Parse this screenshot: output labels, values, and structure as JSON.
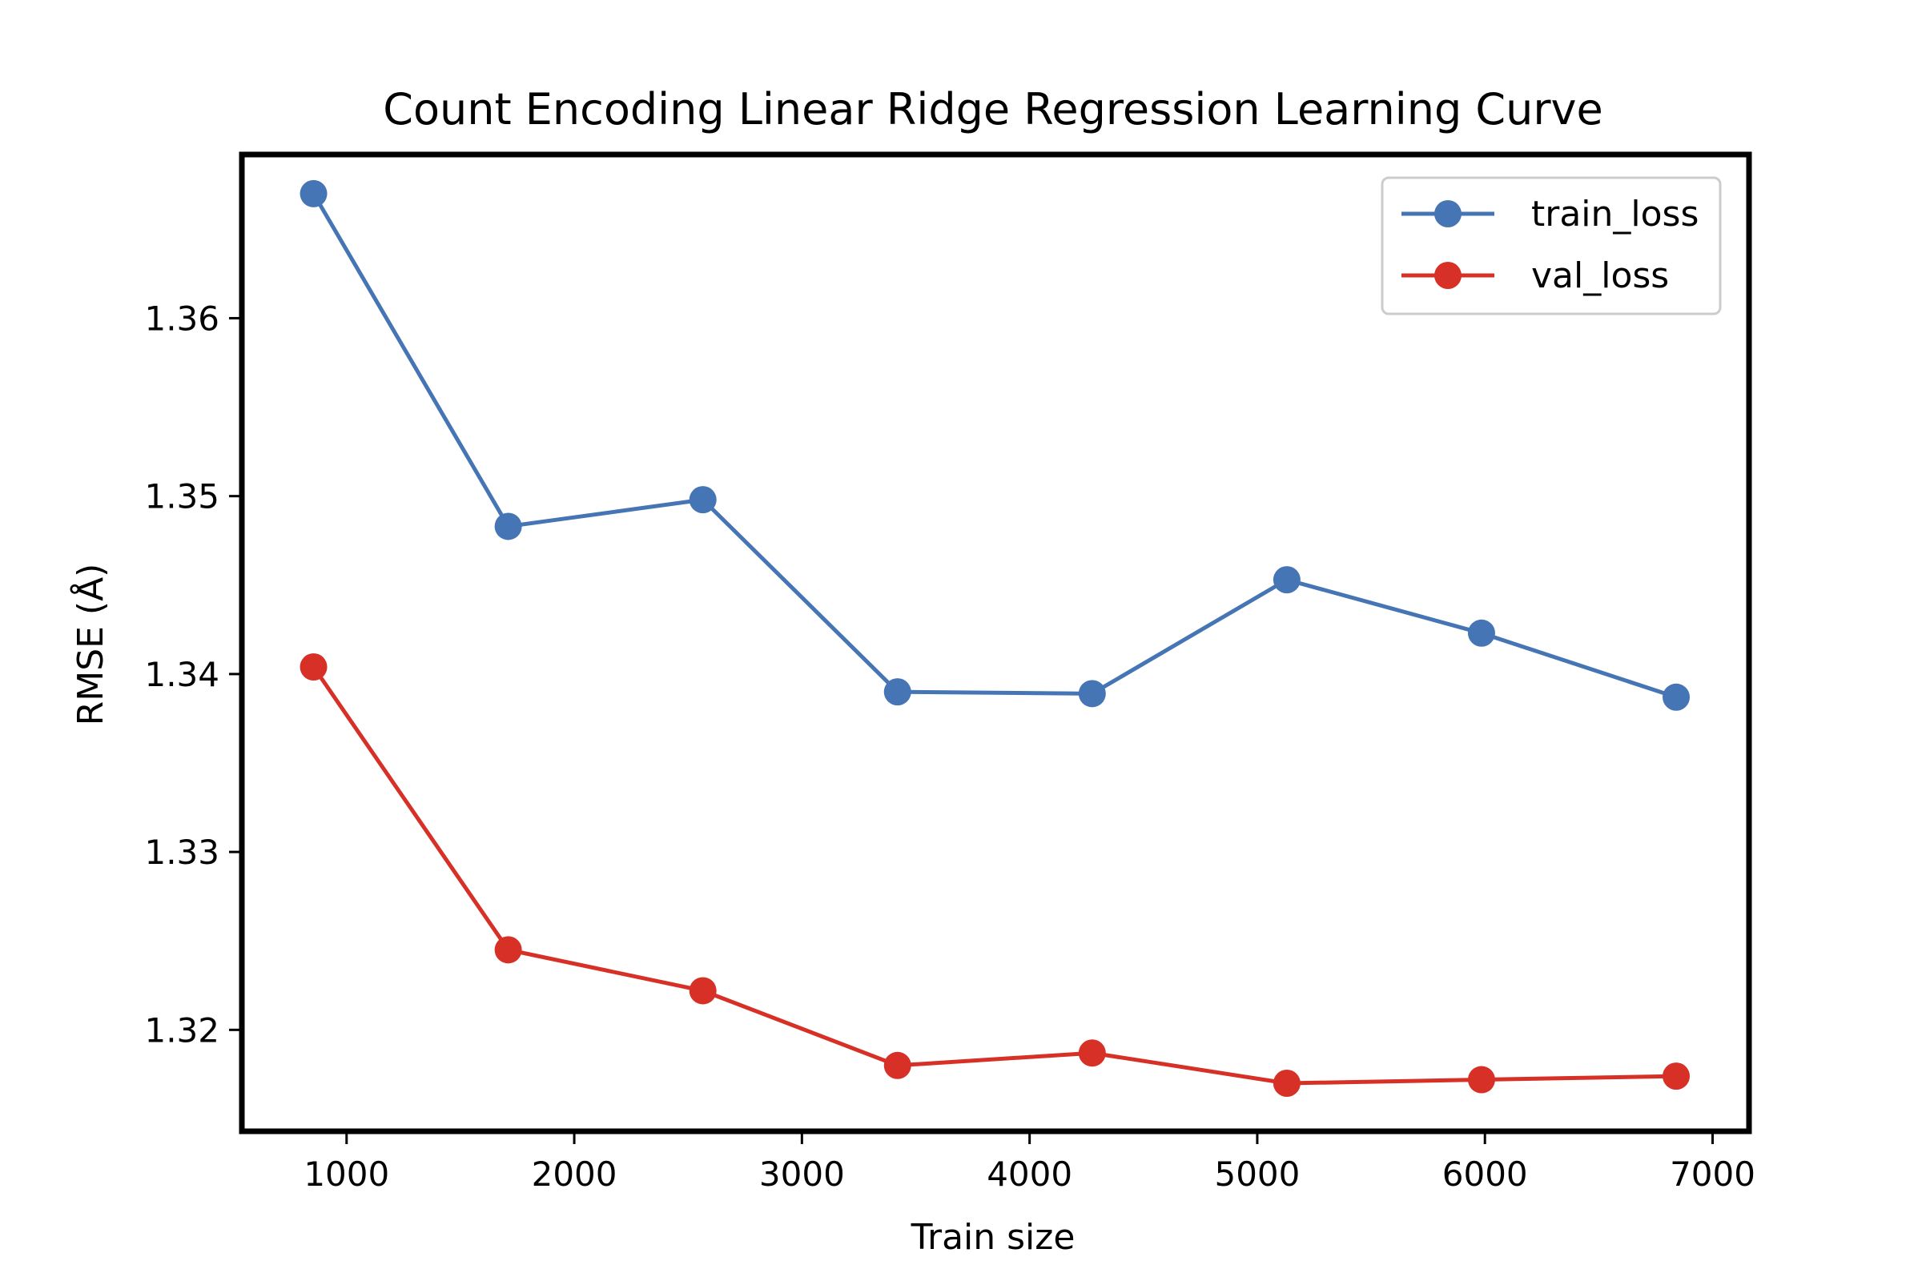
{
  "chart_data": {
    "type": "line",
    "title": "Count Encoding Linear Ridge Regression Learning Curve",
    "xlabel": "Train size",
    "ylabel": "RMSE (Å)",
    "xlim": [
      540,
      7160
    ],
    "ylim": [
      1.3143,
      1.3692
    ],
    "x_ticks": [
      1000,
      2000,
      3000,
      4000,
      5000,
      6000,
      7000
    ],
    "y_ticks": [
      1.32,
      1.33,
      1.34,
      1.35,
      1.36
    ],
    "x_tick_labels": [
      "1000",
      "2000",
      "3000",
      "4000",
      "5000",
      "6000",
      "7000"
    ],
    "y_tick_labels": [
      "1.32",
      "1.33",
      "1.34",
      "1.35",
      "1.36"
    ],
    "grid": false,
    "legend_position": "top-right",
    "x": [
      855,
      1710,
      2565,
      3420,
      4275,
      5130,
      5985,
      6840
    ],
    "series": [
      {
        "name": "train_loss",
        "color": "#4575b4",
        "values": [
          1.367,
          1.3483,
          1.3498,
          1.339,
          1.3389,
          1.3453,
          1.3423,
          1.3387
        ]
      },
      {
        "name": "val_loss",
        "color": "#d73027",
        "values": [
          1.3404,
          1.3245,
          1.3222,
          1.318,
          1.3187,
          1.317,
          1.3172,
          1.3174
        ]
      }
    ]
  }
}
